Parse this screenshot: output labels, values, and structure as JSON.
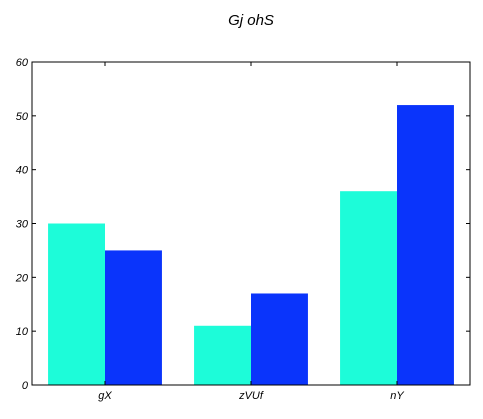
{
  "chart_data": {
    "type": "bar",
    "title": "Gj ohS",
    "xlabel": "",
    "ylabel": "",
    "categories": [
      "gX",
      "zVUf",
      "nY"
    ],
    "series": [
      {
        "values": [
          30,
          11,
          36
        ],
        "color": "#1dfcd9"
      },
      {
        "values": [
          25,
          17,
          52
        ],
        "color": "#0a34fb"
      }
    ],
    "ylim": [
      0,
      60
    ],
    "yticks": [
      0,
      10,
      20,
      30,
      40,
      50,
      60
    ],
    "grid": false,
    "legend": "none"
  }
}
